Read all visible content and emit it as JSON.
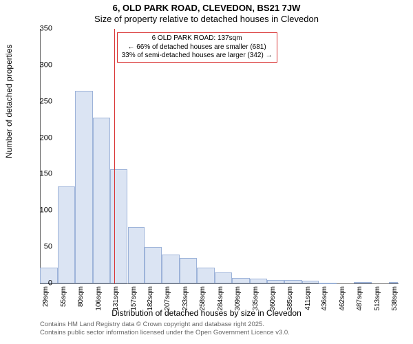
{
  "title_main": "6, OLD PARK ROAD, CLEVEDON, BS21 7JW",
  "title_sub": "Size of property relative to detached houses in Clevedon",
  "y_axis_label": "Number of detached properties",
  "x_axis_label": "Distribution of detached houses by size in Clevedon",
  "chart": {
    "type": "histogram",
    "ylim": [
      0,
      350
    ],
    "ytick_step": 50,
    "background_color": "#ffffff",
    "grid_color": "#cccccc",
    "bar_color": "#dbe4f3",
    "bar_border_color": "#9db3d9",
    "ref_line_color": "#d93333",
    "ref_line_x": 137,
    "x_range": [
      29,
      551
    ],
    "x_ticks": [
      29,
      55,
      80,
      106,
      131,
      157,
      182,
      207,
      233,
      258,
      284,
      309,
      335,
      360,
      385,
      411,
      436,
      462,
      487,
      513,
      538
    ],
    "x_tick_unit": "sqm",
    "bars": [
      {
        "x0": 29,
        "x1": 55,
        "y": 22
      },
      {
        "x0": 55,
        "x1": 80,
        "y": 133
      },
      {
        "x0": 80,
        "x1": 106,
        "y": 265
      },
      {
        "x0": 106,
        "x1": 131,
        "y": 228
      },
      {
        "x0": 131,
        "x1": 157,
        "y": 157
      },
      {
        "x0": 157,
        "x1": 182,
        "y": 78
      },
      {
        "x0": 182,
        "x1": 207,
        "y": 50
      },
      {
        "x0": 207,
        "x1": 233,
        "y": 40
      },
      {
        "x0": 233,
        "x1": 258,
        "y": 35
      },
      {
        "x0": 258,
        "x1": 284,
        "y": 22
      },
      {
        "x0": 284,
        "x1": 309,
        "y": 15
      },
      {
        "x0": 309,
        "x1": 335,
        "y": 8
      },
      {
        "x0": 335,
        "x1": 360,
        "y": 7
      },
      {
        "x0": 360,
        "x1": 385,
        "y": 5
      },
      {
        "x0": 385,
        "x1": 411,
        "y": 5
      },
      {
        "x0": 411,
        "x1": 436,
        "y": 4
      },
      {
        "x0": 436,
        "x1": 462,
        "y": 1
      },
      {
        "x0": 462,
        "x1": 487,
        "y": 0
      },
      {
        "x0": 487,
        "x1": 513,
        "y": 2
      },
      {
        "x0": 513,
        "x1": 538,
        "y": 0
      },
      {
        "x0": 538,
        "x1": 551,
        "y": 2
      }
    ]
  },
  "annotation": {
    "line1": "6 OLD PARK ROAD: 137sqm",
    "line2": "← 66% of detached houses are smaller (681)",
    "line3": "33% of semi-detached houses are larger (342) →"
  },
  "footer": {
    "line1": "Contains HM Land Registry data © Crown copyright and database right 2025.",
    "line2": "Contains public sector information licensed under the Open Government Licence v3.0."
  }
}
